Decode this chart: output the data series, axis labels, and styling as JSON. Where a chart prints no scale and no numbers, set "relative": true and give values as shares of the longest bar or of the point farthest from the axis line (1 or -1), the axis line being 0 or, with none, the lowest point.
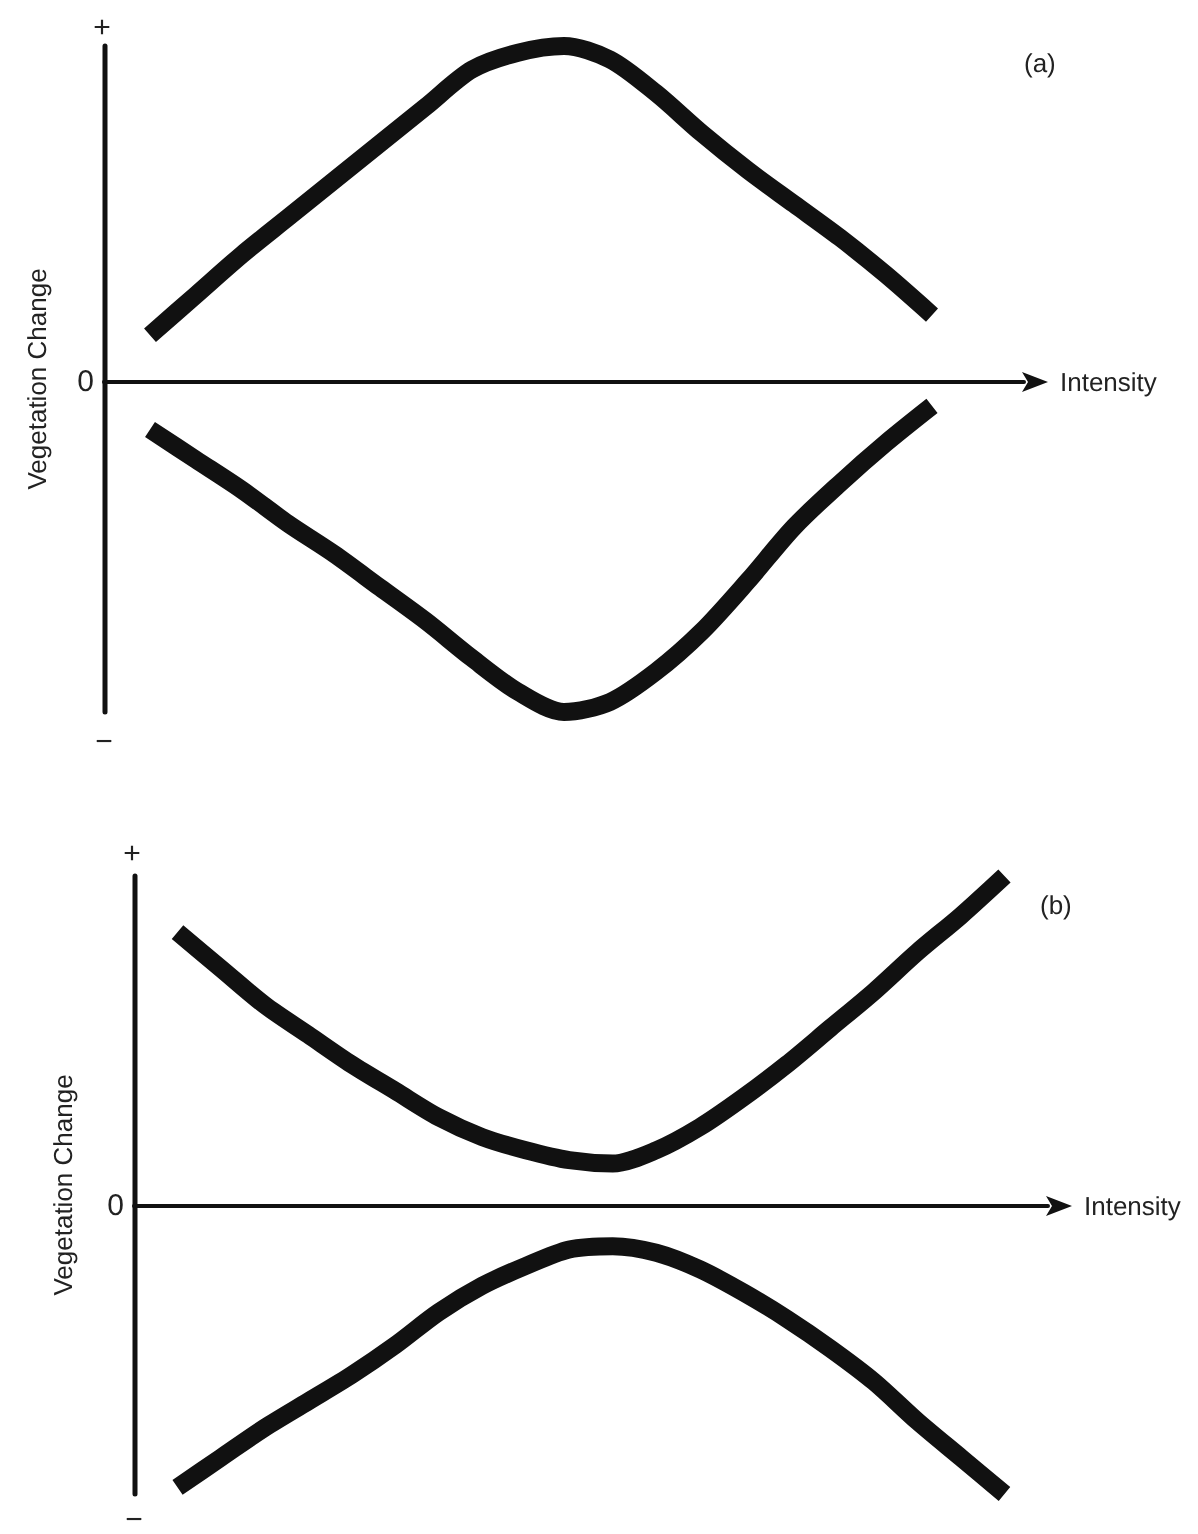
{
  "chart_data": [
    {
      "type": "line",
      "title": "(a)",
      "xlabel": "Intensity",
      "ylabel": "Vegetation Change",
      "relative": true,
      "grid": false,
      "marker": "none",
      "categories": [
        null,
        null,
        null,
        null,
        null,
        null,
        null,
        null,
        null,
        null,
        null,
        null,
        null,
        null,
        null,
        null,
        null,
        null,
        null,
        null,
        null
      ],
      "annotations": [
        "+",
        "0",
        "−"
      ],
      "series": [
        {
          "color": "#111111",
          "values": [
            null,
            0.14,
            0.26,
            0.38,
            0.49,
            0.6,
            0.71,
            0.82,
            0.93,
            0.98,
            1.0,
            0.96,
            0.86,
            0.74,
            0.63,
            0.53,
            0.43,
            0.32,
            0.2,
            null,
            null
          ]
        },
        {
          "color": "#111111",
          "values": [
            null,
            -0.14,
            -0.23,
            -0.32,
            -0.42,
            -0.51,
            -0.61,
            -0.71,
            -0.82,
            -0.92,
            -0.98,
            -0.95,
            -0.86,
            -0.74,
            -0.59,
            -0.43,
            -0.3,
            -0.18,
            -0.07,
            null,
            null
          ]
        }
      ]
    },
    {
      "type": "line",
      "title": "(b)",
      "xlabel": "Intensity",
      "ylabel": "Vegetation Change",
      "relative": true,
      "grid": false,
      "marker": "none",
      "categories": [
        null,
        null,
        null,
        null,
        null,
        null,
        null,
        null,
        null,
        null,
        null,
        null,
        null,
        null,
        null,
        null,
        null,
        null,
        null,
        null,
        null,
        null
      ],
      "annotations": [
        "+",
        "0",
        "−"
      ],
      "series": [
        {
          "color": "#111111",
          "values": [
            null,
            0.83,
            0.72,
            0.61,
            0.52,
            0.43,
            0.35,
            0.27,
            0.21,
            0.17,
            0.14,
            0.13,
            0.17,
            0.24,
            0.33,
            0.43,
            0.54,
            0.65,
            0.77,
            0.88,
            1.0,
            null
          ]
        },
        {
          "color": "#111111",
          "values": [
            null,
            -0.85,
            -0.76,
            -0.67,
            -0.59,
            -0.51,
            -0.42,
            -0.32,
            -0.24,
            -0.18,
            -0.13,
            -0.12,
            -0.14,
            -0.19,
            -0.26,
            -0.34,
            -0.43,
            -0.53,
            -0.65,
            -0.76,
            -0.87,
            null
          ]
        }
      ]
    }
  ]
}
